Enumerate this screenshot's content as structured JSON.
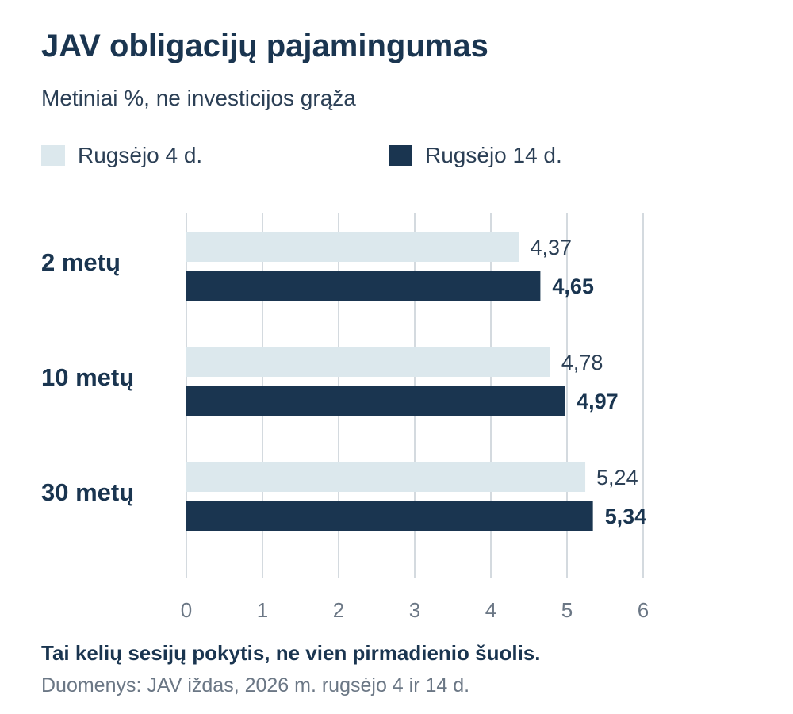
{
  "header": {
    "title": "JAV obligacijų pajamingumas",
    "subtitle": "Metiniai %, ne investicijos grąža"
  },
  "legend": [
    {
      "label": "Rugsėjo 4 d.",
      "color": "#dce8ed"
    },
    {
      "label": "Rugsėjo 14 d.",
      "color": "#1a3550"
    }
  ],
  "chart_data": {
    "type": "bar",
    "orientation": "horizontal",
    "categories": [
      "2 metų",
      "10 metų",
      "30 metų"
    ],
    "series": [
      {
        "name": "Rugsėjo 4 d.",
        "values": [
          4.37,
          4.78,
          5.24
        ],
        "labels": [
          "4,37",
          "4,78",
          "5,24"
        ],
        "color": "#dce8ed"
      },
      {
        "name": "Rugsėjo 14 d.",
        "values": [
          4.65,
          4.97,
          5.34
        ],
        "labels": [
          "4,65",
          "4,97",
          "5,34"
        ],
        "color": "#1a3550"
      }
    ],
    "xlim": [
      0,
      6
    ],
    "ticks": [
      "0",
      "1",
      "2",
      "3",
      "4",
      "5",
      "6"
    ],
    "grid": true,
    "legend_position": "top-left"
  },
  "footer": {
    "takeaway": "Tai kelių sesijų pokytis, ne vien pirmadienio šuolis.",
    "source": "Duomenys: JAV iždas, 2026 m. rugsėjo 4 ir 14 d."
  }
}
